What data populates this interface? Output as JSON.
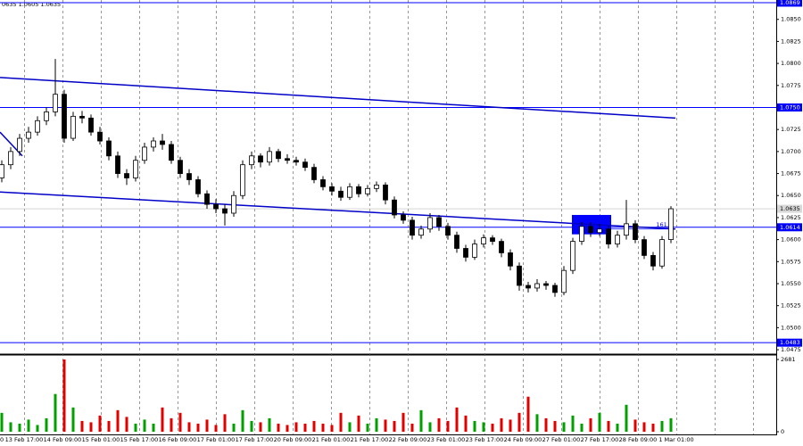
{
  "chart_data": {
    "type": "candlestick",
    "header": "0635 1.0605 1.0635",
    "ylim": [
      1.047,
      1.0872
    ],
    "yticks": [
      1.0475,
      {
        "value": 1.05,
        "label": "1.0500"
      },
      1.0525,
      {
        "value": 1.055,
        "label": "1.0550"
      },
      1.0575,
      {
        "value": 1.06,
        "label": "1.0600"
      },
      1.0625,
      {
        "value": 1.065,
        "label": "1.0650"
      },
      1.0675,
      {
        "value": 1.07,
        "label": "1.0700"
      },
      1.0725,
      1.0775,
      {
        "value": 1.08,
        "label": "1.0800"
      },
      1.0825,
      {
        "value": 1.085,
        "label": "1.0850"
      }
    ],
    "levels": [
      1.0869,
      {
        "value": 1.075,
        "label": "1.0750"
      },
      1.0614,
      1.0483
    ],
    "level_color": "#0000ff",
    "current_price": 1.0635,
    "candle_color": "#000000",
    "ohlc": [
      [
        1.067,
        1.069,
        1.0665,
        1.0685
      ],
      [
        1.0685,
        1.0705,
        1.068,
        1.07
      ],
      [
        1.07,
        1.072,
        1.0695,
        1.0715
      ],
      [
        1.0715,
        1.0728,
        1.071,
        1.0722
      ],
      [
        1.0722,
        1.074,
        1.0718,
        1.0735
      ],
      [
        1.0735,
        1.075,
        1.073,
        1.0745
      ],
      [
        1.0745,
        1.0805,
        1.074,
        1.0765
      ],
      [
        1.0765,
        1.077,
        1.071,
        1.0715
      ],
      [
        1.0715,
        1.0745,
        1.0712,
        1.074
      ],
      [
        1.074,
        1.0746,
        1.0732,
        1.0738
      ],
      [
        1.0738,
        1.0742,
        1.0718,
        1.0722
      ],
      [
        1.0722,
        1.0728,
        1.0708,
        1.0712
      ],
      [
        1.0712,
        1.0716,
        1.069,
        1.0695
      ],
      [
        1.0695,
        1.07,
        1.067,
        1.0675
      ],
      [
        1.0675,
        1.068,
        1.0662,
        1.067
      ],
      [
        1.067,
        1.0695,
        1.0666,
        1.069
      ],
      [
        1.069,
        1.071,
        1.0686,
        1.0705
      ],
      [
        1.0705,
        1.0716,
        1.07,
        1.0712
      ],
      [
        1.0712,
        1.072,
        1.0702,
        1.0708
      ],
      [
        1.0708,
        1.0712,
        1.0686,
        1.069
      ],
      [
        1.069,
        1.0694,
        1.067,
        1.0675
      ],
      [
        1.0675,
        1.068,
        1.0662,
        1.0668
      ],
      [
        1.0668,
        1.0672,
        1.0648,
        1.0652
      ],
      [
        1.0652,
        1.0656,
        1.0635,
        1.064
      ],
      [
        1.064,
        1.0646,
        1.063,
        1.0635
      ],
      [
        1.0635,
        1.064,
        1.0616,
        1.063
      ],
      [
        1.063,
        1.0655,
        1.0626,
        1.065
      ],
      [
        1.065,
        1.069,
        1.0646,
        1.0685
      ],
      [
        1.0685,
        1.07,
        1.068,
        1.0695
      ],
      [
        1.0695,
        1.0698,
        1.0682,
        1.0688
      ],
      [
        1.0688,
        1.0705,
        1.0684,
        1.07
      ],
      [
        1.07,
        1.0703,
        1.0688,
        1.0692
      ],
      [
        1.0692,
        1.0697,
        1.0686,
        1.069
      ],
      [
        1.069,
        1.0694,
        1.0684,
        1.0688
      ],
      [
        1.0688,
        1.0692,
        1.0678,
        1.0682
      ],
      [
        1.0682,
        1.0686,
        1.0664,
        1.0668
      ],
      [
        1.0668,
        1.0672,
        1.0656,
        1.066
      ],
      [
        1.066,
        1.0664,
        1.065,
        1.0655
      ],
      [
        1.0655,
        1.066,
        1.0644,
        1.0648
      ],
      [
        1.0648,
        1.0664,
        1.0645,
        1.066
      ],
      [
        1.066,
        1.0663,
        1.0648,
        1.0652
      ],
      [
        1.0652,
        1.0662,
        1.0649,
        1.0658
      ],
      [
        1.0658,
        1.0666,
        1.0654,
        1.0662
      ],
      [
        1.0662,
        1.0665,
        1.064,
        1.0645
      ],
      [
        1.0645,
        1.0649,
        1.0624,
        1.0628
      ],
      [
        1.0628,
        1.0632,
        1.0618,
        1.0622
      ],
      [
        1.0622,
        1.0626,
        1.06,
        1.0605
      ],
      [
        1.0605,
        1.0616,
        1.0601,
        1.0612
      ],
      [
        1.0612,
        1.063,
        1.0608,
        1.0625
      ],
      [
        1.0625,
        1.0628,
        1.061,
        1.0615
      ],
      [
        1.0615,
        1.0619,
        1.06,
        1.0605
      ],
      [
        1.0605,
        1.0609,
        1.0585,
        1.059
      ],
      [
        1.059,
        1.0594,
        1.0575,
        1.058
      ],
      [
        1.058,
        1.06,
        1.0577,
        1.0595
      ],
      [
        1.0595,
        1.0606,
        1.0591,
        1.0602
      ],
      [
        1.0602,
        1.0605,
        1.0594,
        1.0598
      ],
      [
        1.0598,
        1.0601,
        1.058,
        1.0585
      ],
      [
        1.0585,
        1.0589,
        1.0565,
        1.057
      ],
      [
        1.057,
        1.0574,
        1.0542,
        1.0548
      ],
      [
        1.0548,
        1.0552,
        1.054,
        1.0545
      ],
      [
        1.0545,
        1.0555,
        1.0541,
        1.055
      ],
      [
        1.055,
        1.0553,
        1.0543,
        1.0548
      ],
      [
        1.0548,
        1.0551,
        1.0535,
        1.054
      ],
      [
        1.054,
        1.057,
        1.0537,
        1.0565
      ],
      [
        1.0565,
        1.0602,
        1.0561,
        1.0598
      ],
      [
        1.0598,
        1.062,
        1.0594,
        1.0615
      ],
      [
        1.0615,
        1.062,
        1.0603,
        1.0608
      ],
      [
        1.0608,
        1.0618,
        1.0604,
        1.0612
      ],
      [
        1.0612,
        1.0616,
        1.059,
        1.0595
      ],
      [
        1.0595,
        1.061,
        1.0591,
        1.0605
      ],
      [
        1.0605,
        1.0645,
        1.06,
        1.0618
      ],
      [
        1.0618,
        1.0622,
        1.0596,
        1.06
      ],
      [
        1.06,
        1.0604,
        1.0578,
        1.0582
      ],
      [
        1.0582,
        1.0586,
        1.0565,
        1.057
      ],
      [
        1.057,
        1.0604,
        1.0567,
        1.06
      ],
      [
        1.06,
        1.0638,
        1.0596,
        1.0635
      ]
    ],
    "volume": [
      700,
      350,
      300,
      450,
      250,
      500,
      1400,
      2681,
      900,
      400,
      350,
      600,
      400,
      800,
      550,
      300,
      450,
      300,
      900,
      500,
      700,
      350,
      300,
      450,
      250,
      650,
      300,
      800,
      400,
      350,
      500,
      300,
      250,
      350,
      300,
      400,
      300,
      250,
      700,
      350,
      600,
      300,
      500,
      450,
      400,
      700,
      300,
      800,
      350,
      500,
      400,
      900,
      600,
      400,
      350,
      300,
      500,
      450,
      700,
      1300,
      650,
      500,
      400,
      350,
      600,
      300,
      500,
      700,
      400,
      300,
      1000,
      450,
      350,
      300,
      400,
      500
    ],
    "volume_ylim": [
      0,
      2780
    ],
    "volume_yticks": [
      0,
      2681
    ],
    "up_volume_color": "#00a000",
    "down_volume_color": "#e00000",
    "trendlines": [
      {
        "start": [
          -0.2,
          1.0784
        ],
        "end": [
          75.5,
          1.0738
        ]
      },
      {
        "start": [
          -0.2,
          1.0654
        ],
        "end": [
          75.5,
          1.0612
        ]
      },
      {
        "start": [
          -0.2,
          1.0722
        ],
        "end": [
          2.3,
          1.0695
        ]
      }
    ],
    "trendline_color": "#0000c8",
    "zone": {
      "start": [
        63.9,
        1.0628
      ],
      "end": [
        68.3,
        1.0606
      ],
      "color": "#0000ff"
    },
    "fibo": {
      "label": "161.8",
      "start": [
        64,
        1.0612
      ],
      "end": [
        75.5,
        1.0612
      ]
    },
    "time_labels": [
      "0",
      "13 Feb 17:00",
      "14 Feb 09:00",
      "15 Feb 01:00",
      "15 Feb 17:00",
      "16 Feb 09:00",
      "17 Feb 01:00",
      "17 Feb 17:00",
      "20 Feb 09:00",
      "21 Feb 01:00",
      "21 Feb 17:00",
      "22 Feb 09:00",
      "23 Feb 01:00",
      "23 Feb 17:00",
      "24 Feb 09:00",
      "27 Feb 01:00",
      "27 Feb 17:00",
      "28 Feb 09:00",
      "1 Mar 01:00"
    ],
    "grid": true
  }
}
